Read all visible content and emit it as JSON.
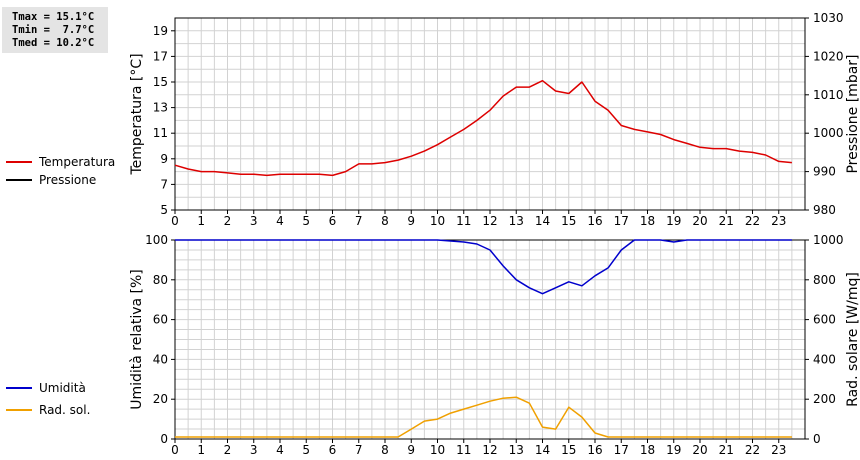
{
  "stats": {
    "tmax": "Tmax = 15.1°C",
    "tmin": "Tmin =  7.7°C",
    "tmed": "Tmed = 10.2°C"
  },
  "legend_top": [
    {
      "label": "Temperatura",
      "color": "#dd0000"
    },
    {
      "label": "Pressione",
      "color": "#000000"
    }
  ],
  "legend_bottom": [
    {
      "label": "Umidità",
      "color": "#0000cc"
    },
    {
      "label": "Rad. sol.",
      "color": "#f0a000"
    }
  ],
  "chart_data": [
    {
      "type": "line",
      "ylabel": "Temperatura [°C]",
      "y2label": "Pressione [mbar]",
      "xlim": [
        0,
        24
      ],
      "ylim": [
        5,
        20
      ],
      "y2lim": [
        980,
        1030
      ],
      "xticks": [
        "0",
        "1",
        "2",
        "3",
        "4",
        "5",
        "6",
        "7",
        "8",
        "9",
        "10",
        "11",
        "12",
        "13",
        "14",
        "15",
        "16",
        "17",
        "18",
        "19",
        "20",
        "21",
        "22",
        "23"
      ],
      "yticks": [
        "5",
        "7",
        "9",
        "11",
        "13",
        "15",
        "17",
        "19"
      ],
      "y2ticks": [
        "980",
        "990",
        "1000",
        "1010",
        "1020",
        "1030"
      ],
      "grid": true,
      "series": [
        {
          "name": "Temperatura",
          "axis": "left",
          "color": "#dd0000",
          "x": [
            0,
            0.5,
            1,
            1.5,
            2,
            2.5,
            3,
            3.5,
            4,
            4.5,
            5,
            5.5,
            6,
            6.5,
            7,
            7.5,
            8,
            8.5,
            9,
            9.5,
            10,
            10.5,
            11,
            11.5,
            12,
            12.5,
            13,
            13.5,
            14,
            14.5,
            15,
            15.5,
            16,
            16.5,
            17,
            17.5,
            18,
            18.5,
            19,
            19.5,
            20,
            20.5,
            21,
            21.5,
            22,
            22.5,
            23,
            23.5
          ],
          "y": [
            8.5,
            8.2,
            8.0,
            8.0,
            7.9,
            7.8,
            7.8,
            7.7,
            7.8,
            7.8,
            7.8,
            7.8,
            7.7,
            8.0,
            8.6,
            8.6,
            8.7,
            8.9,
            9.2,
            9.6,
            10.1,
            10.7,
            11.3,
            12.0,
            12.8,
            13.9,
            14.6,
            14.6,
            15.1,
            14.3,
            14.1,
            15.0,
            13.5,
            12.8,
            11.6,
            11.3,
            11.1,
            10.9,
            10.5,
            10.2,
            9.9,
            9.8,
            9.8,
            9.6,
            9.5,
            9.3,
            8.8,
            8.7
          ]
        },
        {
          "name": "Pressione",
          "axis": "right",
          "color": "#000000",
          "x": [],
          "y": []
        }
      ]
    },
    {
      "type": "line",
      "ylabel": "Umidità relativa [%]",
      "y2label": "Rad. solare [W/mq]",
      "xlim": [
        0,
        24
      ],
      "ylim": [
        0,
        100
      ],
      "y2lim": [
        0,
        1000
      ],
      "xticks": [
        "0",
        "1",
        "2",
        "3",
        "4",
        "5",
        "6",
        "7",
        "8",
        "9",
        "10",
        "11",
        "12",
        "13",
        "14",
        "15",
        "16",
        "17",
        "18",
        "19",
        "20",
        "21",
        "22",
        "23"
      ],
      "yticks": [
        "0",
        "20",
        "40",
        "60",
        "80",
        "100"
      ],
      "y2ticks": [
        "0",
        "200",
        "400",
        "600",
        "800",
        "1000"
      ],
      "grid": true,
      "series": [
        {
          "name": "Umidità",
          "axis": "left",
          "color": "#0000cc",
          "x": [
            0,
            10,
            10.5,
            11,
            11.5,
            12,
            12.5,
            13,
            13.5,
            14,
            14.5,
            15,
            15.5,
            16,
            16.5,
            17,
            17.5,
            18,
            18.5,
            19,
            19.5,
            20,
            23.5
          ],
          "y": [
            100,
            100,
            99.5,
            99,
            98,
            95,
            87,
            80,
            76,
            73,
            76,
            79,
            77,
            82,
            86,
            95,
            100,
            100,
            100,
            99,
            100,
            100,
            100
          ]
        },
        {
          "name": "Rad. sol.",
          "axis": "right",
          "color": "#f0a000",
          "x": [
            0,
            8.5,
            9,
            9.5,
            10,
            10.5,
            11,
            11.5,
            12,
            12.5,
            13,
            13.5,
            14,
            14.5,
            15,
            15.5,
            16,
            16.5,
            17,
            23.5
          ],
          "y": [
            10,
            10,
            50,
            90,
            100,
            130,
            150,
            170,
            190,
            205,
            210,
            180,
            60,
            50,
            160,
            110,
            30,
            10,
            10,
            10
          ]
        }
      ]
    }
  ]
}
